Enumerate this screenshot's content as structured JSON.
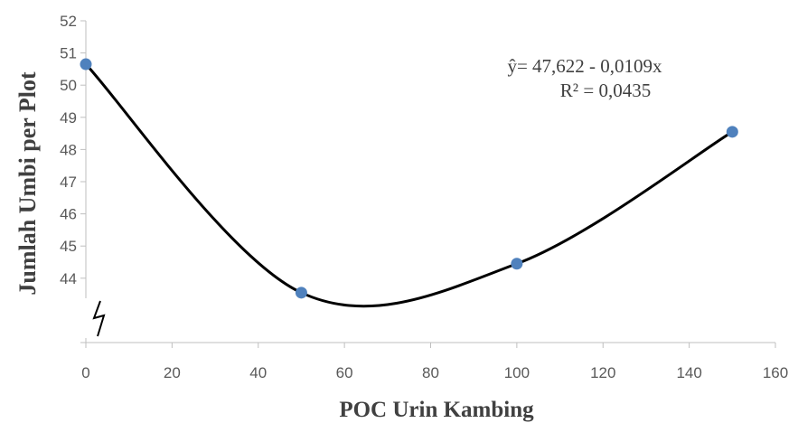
{
  "chart_data": {
    "type": "scatter",
    "title": "",
    "xlabel": "POC Urin Kambing",
    "ylabel": "Jumlah Umbi per Plot",
    "xlim": [
      0,
      160
    ],
    "ylim": [
      42,
      52
    ],
    "x_ticks": [
      "0",
      "20",
      "40",
      "60",
      "80",
      "100",
      "120",
      "140",
      "160"
    ],
    "y_ticks": [
      "44",
      "45",
      "46",
      "47",
      "48",
      "49",
      "50",
      "51",
      "52"
    ],
    "axis_break": true,
    "grid": false,
    "series": [
      {
        "x": [
          0,
          50,
          100,
          150
        ],
        "y": [
          50.65,
          43.55,
          44.45,
          48.55
        ],
        "marker_color": "#4F81BD",
        "line_color": "#000000",
        "smooth": true
      }
    ],
    "annotations": {
      "equation": "ŷ= 47,622 - 0,0109x",
      "r_squared": "R² = 0,0435"
    }
  }
}
